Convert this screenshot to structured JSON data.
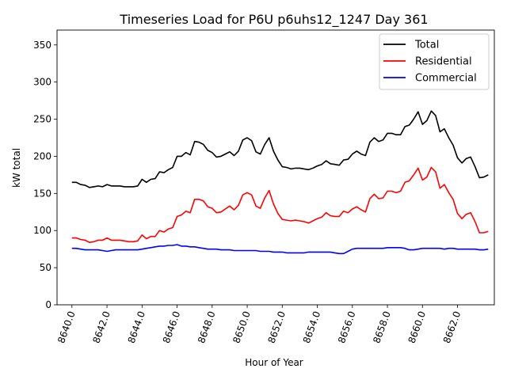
{
  "chart_data": {
    "type": "line",
    "title": "Timeseries Load for P6U p6uhs12_1247  Day 361",
    "xlabel": "Hour of Year",
    "ylabel": "kW total",
    "xlim": [
      8639.15,
      8664.1
    ],
    "ylim": [
      0,
      370
    ],
    "x_ticks": [
      8640,
      8642,
      8644,
      8646,
      8648,
      8650,
      8652,
      8654,
      8656,
      8658,
      8660,
      8662
    ],
    "x_tick_labels": [
      "8640.0",
      "8642.0",
      "8644.0",
      "8646.0",
      "8648.0",
      "8650.0",
      "8652.0",
      "8654.0",
      "8656.0",
      "8658.0",
      "8660.0",
      "8662.0"
    ],
    "y_ticks": [
      0,
      50,
      100,
      150,
      200,
      250,
      300,
      350
    ],
    "y_tick_labels": [
      "0",
      "50",
      "100",
      "150",
      "200",
      "250",
      "300",
      "350"
    ],
    "legend_position": "top-right",
    "x": [
      8640.0,
      8640.25,
      8640.5,
      8640.75,
      8641.0,
      8641.25,
      8641.5,
      8641.75,
      8642.0,
      8642.25,
      8642.5,
      8642.75,
      8643.0,
      8643.25,
      8643.5,
      8643.75,
      8644.0,
      8644.25,
      8644.5,
      8644.75,
      8645.0,
      8645.25,
      8645.5,
      8645.75,
      8646.0,
      8646.25,
      8646.5,
      8646.75,
      8647.0,
      8647.25,
      8647.5,
      8647.75,
      8648.0,
      8648.25,
      8648.5,
      8648.75,
      8649.0,
      8649.25,
      8649.5,
      8649.75,
      8650.0,
      8650.25,
      8650.5,
      8650.75,
      8651.0,
      8651.25,
      8651.5,
      8651.75,
      8652.0,
      8652.25,
      8652.5,
      8652.75,
      8653.0,
      8653.25,
      8653.5,
      8653.75,
      8654.0,
      8654.25,
      8654.5,
      8654.75,
      8655.0,
      8655.25,
      8655.5,
      8655.75,
      8656.0,
      8656.25,
      8656.5,
      8656.75,
      8657.0,
      8657.25,
      8657.5,
      8657.75,
      8658.0,
      8658.25,
      8658.5,
      8658.75,
      8659.0,
      8659.25,
      8659.5,
      8659.75,
      8660.0,
      8660.25,
      8660.5,
      8660.75,
      8661.0,
      8661.25,
      8661.5,
      8661.75,
      8662.0,
      8662.25,
      8662.5,
      8662.75,
      8663.0,
      8663.25,
      8663.5,
      8663.75
    ],
    "series": [
      {
        "name": "Total",
        "color": "#000000",
        "values": [
          165,
          165,
          162,
          161,
          158,
          159,
          160,
          159,
          162,
          160,
          160,
          160,
          159,
          159,
          159,
          160,
          169,
          165,
          169,
          170,
          179,
          178,
          182,
          185,
          200,
          200,
          205,
          202,
          220,
          219,
          216,
          208,
          205,
          199,
          200,
          203,
          206,
          201,
          207,
          222,
          225,
          221,
          206,
          203,
          216,
          225,
          207,
          195,
          186,
          185,
          183,
          184,
          184,
          183,
          182,
          184,
          187,
          189,
          194,
          190,
          189,
          188,
          195,
          196,
          203,
          207,
          203,
          201,
          219,
          225,
          220,
          222,
          231,
          231,
          229,
          229,
          240,
          242,
          250,
          260,
          243,
          248,
          261,
          255,
          233,
          237,
          225,
          215,
          198,
          191,
          197,
          199,
          186,
          171,
          172,
          175
        ]
      },
      {
        "name": "Residential",
        "color": "#ff0000",
        "values": [
          90,
          90,
          88,
          87,
          84,
          85,
          87,
          87,
          90,
          87,
          87,
          87,
          86,
          85,
          85,
          86,
          94,
          89,
          92,
          92,
          100,
          98,
          102,
          104,
          119,
          121,
          126,
          124,
          142,
          142,
          140,
          132,
          130,
          124,
          125,
          129,
          133,
          128,
          134,
          148,
          151,
          148,
          133,
          130,
          144,
          154,
          136,
          123,
          115,
          114,
          113,
          114,
          113,
          112,
          110,
          113,
          116,
          118,
          124,
          120,
          119,
          119,
          126,
          124,
          129,
          132,
          128,
          125,
          143,
          149,
          143,
          144,
          153,
          153,
          151,
          153,
          165,
          167,
          175,
          184,
          168,
          172,
          185,
          179,
          157,
          162,
          151,
          142,
          123,
          116,
          122,
          124,
          112,
          97,
          97,
          99
        ]
      },
      {
        "name": "Commercial",
        "color": "#0000ff",
        "values": [
          76,
          76,
          75,
          74,
          74,
          74,
          74,
          73,
          72,
          73,
          74,
          74,
          74,
          74,
          74,
          74,
          75,
          76,
          77,
          78,
          79,
          79,
          80,
          80,
          81,
          79,
          79,
          78,
          78,
          77,
          76,
          75,
          75,
          75,
          74,
          74,
          74,
          73,
          73,
          73,
          73,
          73,
          73,
          72,
          72,
          72,
          71,
          71,
          71,
          70,
          70,
          70,
          70,
          70,
          71,
          71,
          71,
          71,
          71,
          71,
          70,
          69,
          69,
          72,
          75,
          76,
          76,
          76,
          76,
          76,
          76,
          76,
          77,
          77,
          77,
          77,
          76,
          74,
          74,
          75,
          76,
          76,
          76,
          76,
          76,
          75,
          76,
          76,
          75,
          75,
          75,
          75,
          75,
          74,
          74,
          75
        ]
      }
    ]
  }
}
